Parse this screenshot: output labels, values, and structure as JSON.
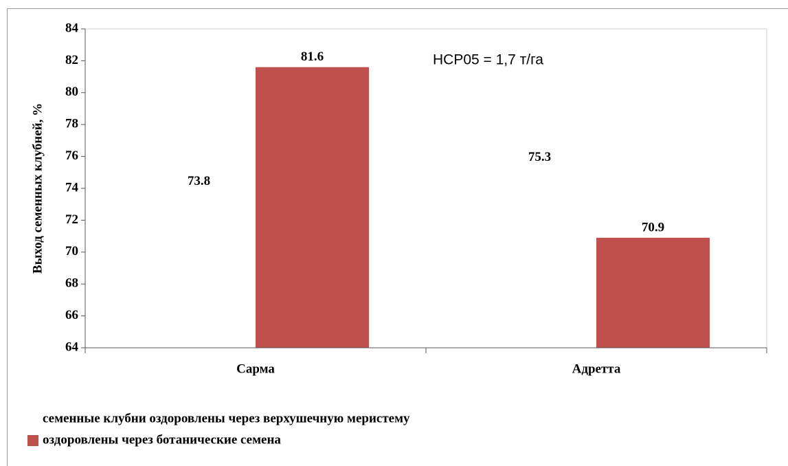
{
  "chart_data": {
    "type": "bar",
    "annotation": "НСР05 = 1,7 т/га",
    "y_label": "Выход семенных клубней, %",
    "categories": [
      "Сарма",
      "Адретта"
    ],
    "series": [
      {
        "name": "семенные клубни оздоровлены через верхушечную меристему",
        "color": "#ffffff",
        "values": [
          73.8,
          75.3
        ]
      },
      {
        "name": "оздоровлены через ботанические семена",
        "color": "#c0504d",
        "values": [
          81.6,
          70.9
        ]
      }
    ],
    "ylim": [
      64,
      84
    ],
    "yticks": [
      64,
      66,
      68,
      70,
      72,
      74,
      76,
      78,
      80,
      82,
      84
    ],
    "grid": false
  }
}
